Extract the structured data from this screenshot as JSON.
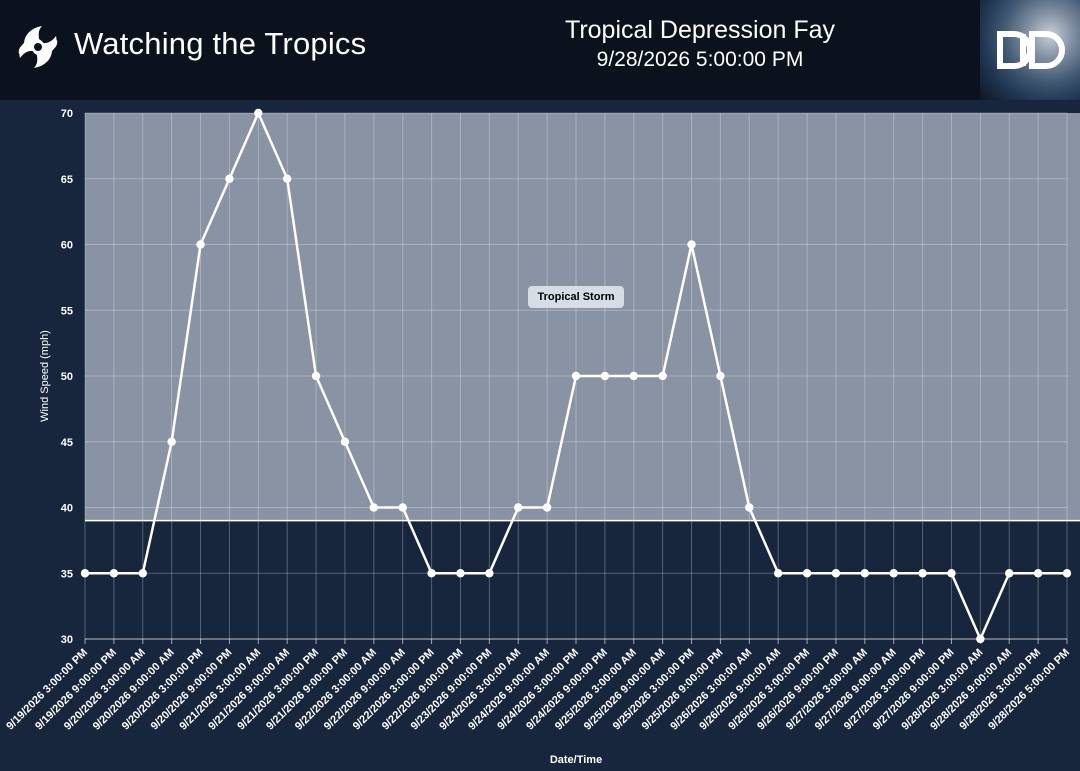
{
  "header": {
    "brand_title": "Watching the Tropics",
    "storm_name": "Tropical Depression Fay",
    "timestamp": "9/28/2026 5:00:00 PM",
    "brand_icon": "hurricane-icon",
    "logo_icon": "dd-logo-icon"
  },
  "colors": {
    "header_bg": "#0b121e",
    "plot_bg": "#17253d",
    "storm_band": "#8a93a3",
    "line": "#ffffff"
  },
  "chart_data": {
    "type": "line",
    "xlabel": "Date/Time",
    "ylabel": "Wind Speed (mph)",
    "ylim": [
      30,
      70
    ],
    "yticks": [
      30,
      35,
      40,
      45,
      50,
      55,
      60,
      65,
      70
    ],
    "grid": true,
    "threshold": {
      "value": 39,
      "label": "Tropical Storm"
    },
    "categories": [
      "9/19/2026 3:00:00 PM",
      "9/19/2026 9:00:00 PM",
      "9/20/2026 3:00:00 AM",
      "9/20/2026 9:00:00 AM",
      "9/20/2026 3:00:00 PM",
      "9/20/2026 9:00:00 PM",
      "9/21/2026 3:00:00 AM",
      "9/21/2026 9:00:00 AM",
      "9/21/2026 3:00:00 PM",
      "9/21/2026 9:00:00 PM",
      "9/22/2026 3:00:00 AM",
      "9/22/2026 9:00:00 AM",
      "9/22/2026 3:00:00 PM",
      "9/22/2026 9:00:00 PM",
      "9/23/2026 9:00:00 PM",
      "9/24/2026 3:00:00 AM",
      "9/24/2026 9:00:00 AM",
      "9/24/2026 3:00:00 PM",
      "9/24/2026 9:00:00 PM",
      "9/25/2026 3:00:00 AM",
      "9/25/2026 9:00:00 AM",
      "9/25/2026 3:00:00 PM",
      "9/25/2026 9:00:00 PM",
      "9/26/2026 3:00:00 AM",
      "9/26/2026 9:00:00 AM",
      "9/26/2026 3:00:00 PM",
      "9/26/2026 9:00:00 PM",
      "9/27/2026 3:00:00 AM",
      "9/27/2026 9:00:00 AM",
      "9/27/2026 3:00:00 PM",
      "9/27/2026 9:00:00 PM",
      "9/28/2026 3:00:00 AM",
      "9/28/2026 9:00:00 AM",
      "9/28/2026 3:00:00 PM",
      "9/28/2026 5:00:00 PM"
    ],
    "series": [
      {
        "values": [
          35,
          35,
          35,
          45,
          60,
          65,
          70,
          65,
          50,
          45,
          40,
          40,
          35,
          35,
          35,
          40,
          40,
          50,
          50,
          50,
          50,
          60,
          50,
          40,
          35,
          35,
          35,
          35,
          35,
          35,
          35,
          30,
          35,
          35,
          35
        ]
      }
    ]
  }
}
